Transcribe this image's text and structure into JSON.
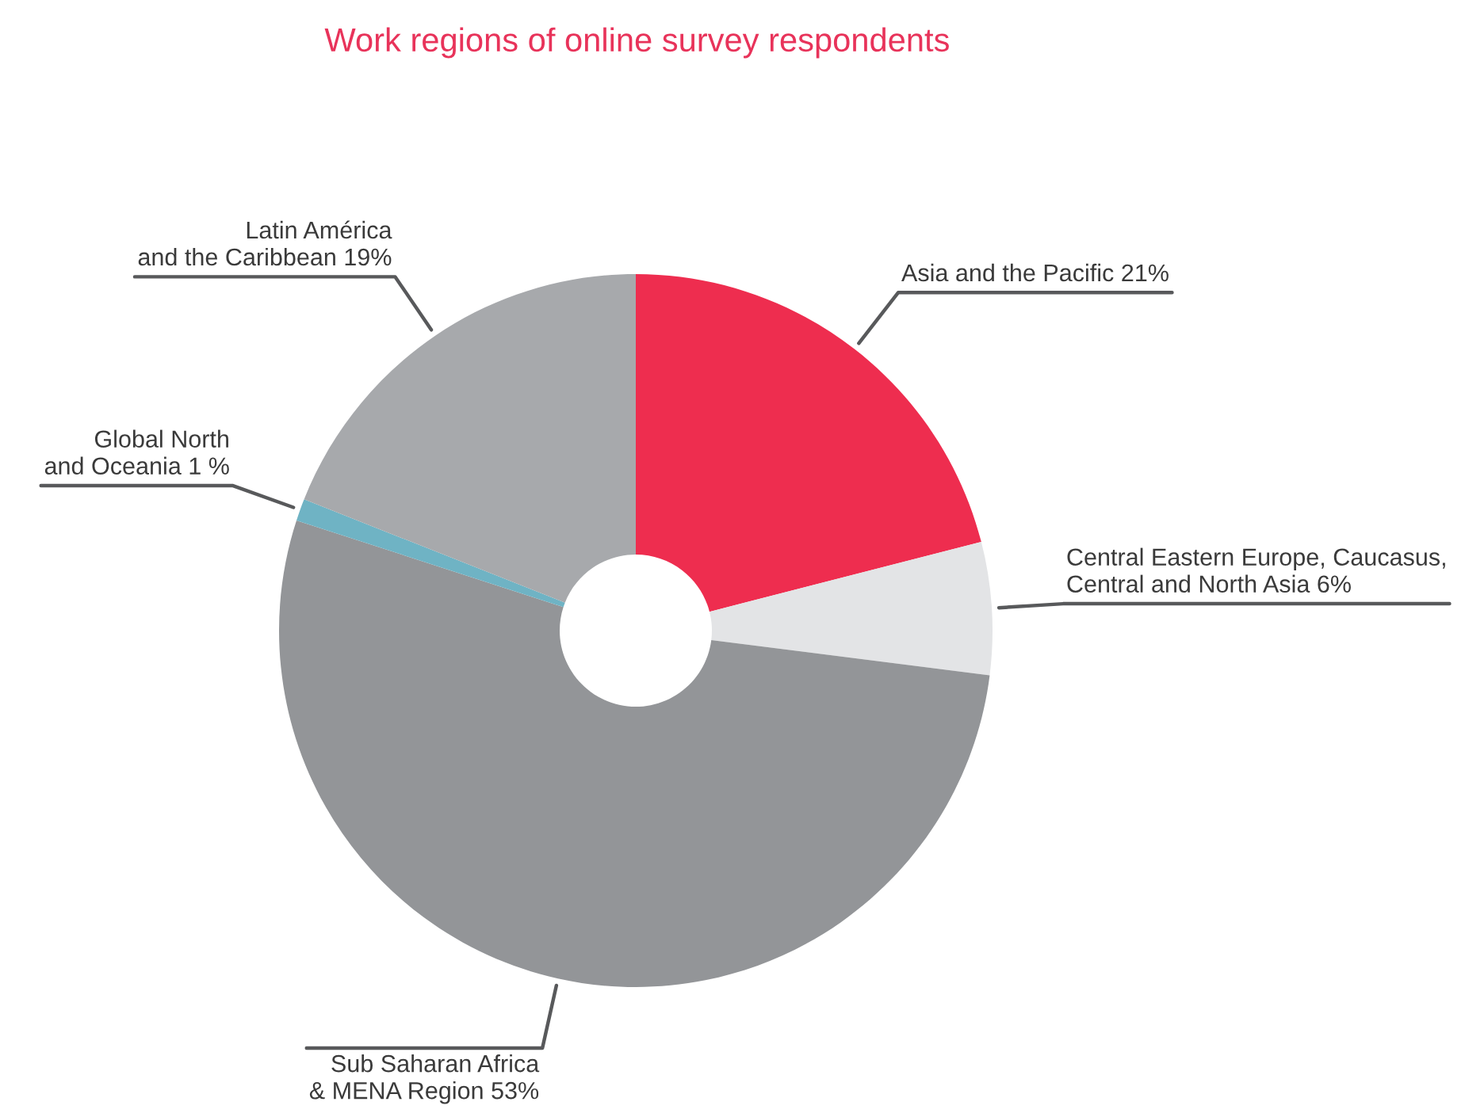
{
  "chart_data": {
    "type": "donut",
    "title": "Work regions of online survey respondents",
    "categories": [
      "Asia and the Pacific",
      "Central Eastern Europe, Caucasus,\nCentral and North Asia",
      "Sub Saharan Africa\n& MENA Region",
      "Global North\nand Oceania",
      "Latin América\nand the Caribbean"
    ],
    "values": [
      21,
      6,
      53,
      1,
      19
    ],
    "value_labels": [
      "21%",
      "6%",
      "53%",
      "1 %",
      "19%"
    ],
    "colors": [
      "#ee2d4f",
      "#e3e4e6",
      "#939598",
      "#6fb3c4",
      "#a7a9ac"
    ],
    "legend": false
  }
}
